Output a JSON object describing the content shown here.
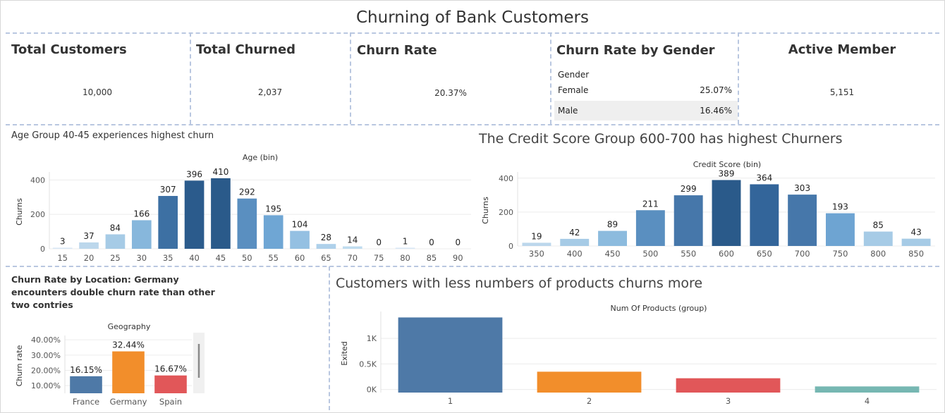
{
  "dashboard_title": "Churning of Bank Customers",
  "kpis": {
    "total_customers": {
      "label": "Total Customers",
      "value": "10,000"
    },
    "total_churned": {
      "label": "Total Churned",
      "value": "2,037"
    },
    "churn_rate": {
      "label": "Churn Rate",
      "value": "20.37%"
    },
    "churn_by_gender": {
      "label": "Churn Rate by Gender",
      "header": "Gender",
      "rows": [
        {
          "gender": "Female",
          "rate": "25.07%"
        },
        {
          "gender": "Male",
          "rate": "16.46%"
        }
      ]
    },
    "active_member": {
      "label": "Active Member",
      "value": "5,151"
    }
  },
  "age_section": {
    "caption": "Age Group 40-45 experiences highest churn"
  },
  "credit_section": {
    "caption": "The Credit Score Group 600-700 has highest Churners"
  },
  "geo_section": {
    "caption_lines": [
      "Churn Rate by Location: Germany",
      "encounters double churn rate than other",
      "two contries"
    ]
  },
  "products_section": {
    "caption": "Customers with less numbers of products churns more"
  },
  "chart_data": [
    {
      "id": "age",
      "type": "bar",
      "title": "Age (bin)",
      "ylabel": "Churns",
      "categories": [
        "15",
        "20",
        "25",
        "30",
        "35",
        "40",
        "45",
        "50",
        "55",
        "60",
        "65",
        "70",
        "75",
        "80",
        "85",
        "90"
      ],
      "values": [
        3,
        37,
        84,
        166,
        307,
        396,
        410,
        292,
        195,
        104,
        28,
        14,
        0,
        1,
        0,
        0
      ],
      "yticks": [
        0,
        200,
        400
      ],
      "ylim": [
        0,
        430
      ],
      "colors": [
        "#d7e6f4",
        "#bcd7ec",
        "#a6cbe6",
        "#87b7dc",
        "#3d70a3",
        "#2b5b8c",
        "#2a5a8a",
        "#5a8fc0",
        "#6fa6d4",
        "#94c0e2",
        "#aed0ea",
        "#bfdcef",
        "#d7e6f4",
        "#d7e6f4",
        "#d7e6f4",
        "#d7e6f4"
      ]
    },
    {
      "id": "credit",
      "type": "bar",
      "title": "Credit Score (bin)",
      "ylabel": "Churns",
      "categories": [
        "350",
        "400",
        "450",
        "500",
        "550",
        "600",
        "650",
        "700",
        "750",
        "800",
        "850"
      ],
      "values": [
        19,
        42,
        89,
        211,
        299,
        389,
        364,
        303,
        193,
        85,
        43
      ],
      "yticks": [
        0,
        200,
        400
      ],
      "ylim": [
        0,
        420
      ],
      "colors": [
        "#bcd7ec",
        "#a6cbe6",
        "#8cbbde",
        "#5a8fc0",
        "#4677aa",
        "#2a5a8a",
        "#33659a",
        "#4677aa",
        "#6ea4d2",
        "#a6cbe6",
        "#a6cbe6"
      ]
    },
    {
      "id": "geography",
      "type": "bar",
      "title": "Geography",
      "ylabel": "Churn rate",
      "categories": [
        "France",
        "Germany",
        "Spain"
      ],
      "values": [
        16.15,
        32.44,
        16.67
      ],
      "value_labels": [
        "16.15%",
        "32.44%",
        "16.67%"
      ],
      "yticks": [
        "10.00%",
        "20.00%",
        "30.00%",
        "40.00%"
      ],
      "colors": [
        "#4e79a7",
        "#f28e2b",
        "#e15759"
      ]
    },
    {
      "id": "products",
      "type": "bar",
      "title": "Num Of Products (group)",
      "ylabel": "Exited",
      "categories": [
        "1",
        "2",
        "3",
        "4"
      ],
      "values": [
        1409,
        348,
        220,
        60
      ],
      "yticks": [
        "0K",
        "0.5K",
        "1K"
      ],
      "colors": [
        "#4e79a7",
        "#f28e2b",
        "#e15759",
        "#76b7b2"
      ]
    }
  ]
}
